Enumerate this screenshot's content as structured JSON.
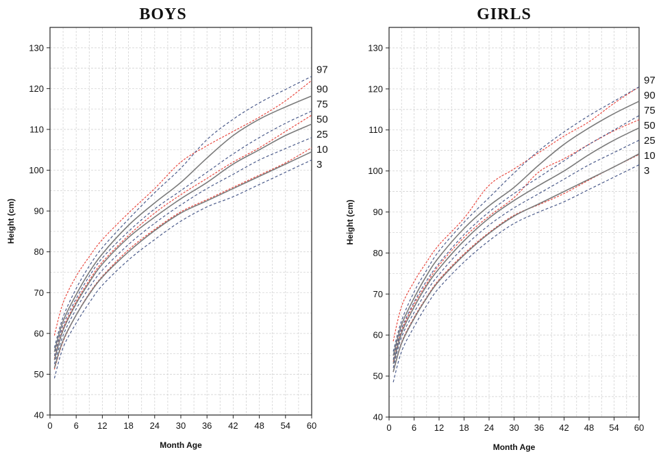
{
  "chart_data": [
    {
      "type": "line",
      "title": "BOYS",
      "xlabel": "Month Age",
      "ylabel": "Height (cm)",
      "xlim": [
        0,
        60
      ],
      "ylim": [
        40,
        135
      ],
      "x_ticks": [
        0,
        6,
        12,
        18,
        24,
        30,
        36,
        42,
        48,
        54,
        60
      ],
      "y_ticks": [
        40,
        50,
        60,
        70,
        80,
        90,
        100,
        110,
        120,
        130
      ],
      "grid": true,
      "line_styles": {
        "dashed": {
          "color": "#4a5a8a",
          "dasharray": "4 3"
        },
        "solid": {
          "color": "#7a7a7a",
          "dasharray": ""
        },
        "red_dotted": {
          "color": "#e8483f",
          "dasharray": "3 2"
        }
      },
      "x": [
        1,
        3,
        6,
        9,
        12,
        18,
        24,
        30,
        36,
        42,
        48,
        54,
        60
      ],
      "series": [
        {
          "name": "97",
          "style": "dashed",
          "values": [
            56.5,
            64.0,
            71.0,
            76.5,
            81.0,
            88.0,
            94.5,
            100.5,
            107.5,
            112.5,
            116.5,
            119.8,
            123.0
          ]
        },
        {
          "name": "90",
          "style": "solid",
          "values": [
            55.5,
            63.0,
            69.5,
            75.0,
            79.5,
            86.5,
            92.0,
            97.0,
            103.0,
            108.5,
            112.5,
            115.5,
            118.2
          ]
        },
        {
          "name": "75",
          "style": "dashed",
          "values": [
            54.5,
            62.0,
            68.5,
            74.0,
            78.5,
            85.0,
            90.5,
            95.0,
            99.5,
            104.0,
            108.0,
            111.5,
            114.5
          ]
        },
        {
          "name": "50",
          "style": "solid",
          "values": [
            53.5,
            60.8,
            67.3,
            72.5,
            77.0,
            83.5,
            88.5,
            93.0,
            97.0,
            101.5,
            105.0,
            108.5,
            111.3
          ]
        },
        {
          "name": "25",
          "style": "dashed",
          "values": [
            52.5,
            59.5,
            66.0,
            71.2,
            75.5,
            81.8,
            87.0,
            91.5,
            95.5,
            99.0,
            102.5,
            105.3,
            108.0
          ]
        },
        {
          "name": "10",
          "style": "solid",
          "values": [
            51.5,
            58.3,
            64.5,
            69.6,
            73.8,
            80.0,
            85.2,
            89.5,
            92.5,
            95.5,
            98.5,
            101.5,
            104.5
          ]
        },
        {
          "name": "3",
          "style": "dashed",
          "values": [
            49.0,
            56.5,
            62.5,
            67.5,
            71.8,
            78.0,
            83.0,
            87.5,
            91.0,
            93.5,
            96.5,
            99.5,
            102.5
          ]
        },
        {
          "name": "",
          "style": "red_dotted",
          "values": [
            59.5,
            67.5,
            74.0,
            78.8,
            83.0,
            89.5,
            95.5,
            102.0,
            106.0,
            109.5,
            113.0,
            117.0,
            122.0
          ]
        },
        {
          "name": "",
          "style": "red_dotted",
          "values": [
            53.8,
            61.2,
            67.8,
            73.0,
            77.5,
            84.0,
            89.5,
            94.0,
            98.0,
            102.0,
            105.5,
            109.5,
            113.5
          ]
        },
        {
          "name": "",
          "style": "red_dotted",
          "values": [
            51.2,
            58.0,
            64.5,
            69.8,
            74.0,
            80.5,
            85.5,
            89.8,
            92.8,
            95.8,
            98.8,
            101.8,
            105.5
          ]
        }
      ]
    },
    {
      "type": "line",
      "title": "GIRLS",
      "xlabel": "Month Age",
      "ylabel": "Height (cm)",
      "xlim": [
        0,
        60
      ],
      "ylim": [
        40,
        135
      ],
      "x_ticks": [
        0,
        6,
        12,
        18,
        24,
        30,
        36,
        42,
        48,
        54,
        60
      ],
      "y_ticks": [
        40,
        50,
        60,
        70,
        80,
        90,
        100,
        110,
        120,
        130
      ],
      "grid": true,
      "line_styles": {
        "dashed": {
          "color": "#4a5a8a",
          "dasharray": "4 3"
        },
        "solid": {
          "color": "#7a7a7a",
          "dasharray": ""
        },
        "red_dotted": {
          "color": "#e8483f",
          "dasharray": "3 2"
        }
      },
      "x": [
        1,
        3,
        6,
        9,
        12,
        18,
        24,
        30,
        36,
        42,
        48,
        54,
        60
      ],
      "series": [
        {
          "name": "97",
          "style": "dashed",
          "values": [
            56.0,
            63.5,
            70.5,
            75.8,
            80.5,
            87.5,
            93.5,
            99.5,
            105.0,
            109.5,
            113.5,
            117.0,
            120.5
          ]
        },
        {
          "name": "90",
          "style": "solid",
          "values": [
            55.0,
            62.5,
            69.0,
            74.5,
            79.0,
            86.0,
            91.5,
            96.0,
            101.5,
            106.5,
            110.5,
            114.0,
            117.0
          ]
        },
        {
          "name": "75",
          "style": "dashed",
          "values": [
            54.0,
            61.5,
            68.0,
            73.2,
            77.5,
            84.5,
            90.0,
            94.5,
            98.5,
            102.5,
            106.5,
            110.0,
            113.5
          ]
        },
        {
          "name": "50",
          "style": "solid",
          "values": [
            53.0,
            60.5,
            66.8,
            72.0,
            76.2,
            83.0,
            88.5,
            92.8,
            96.5,
            100.0,
            104.0,
            107.5,
            110.5
          ]
        },
        {
          "name": "25",
          "style": "dashed",
          "values": [
            52.0,
            59.5,
            65.5,
            70.6,
            74.8,
            81.5,
            86.8,
            91.0,
            94.5,
            98.0,
            101.5,
            104.5,
            107.5
          ]
        },
        {
          "name": "10",
          "style": "solid",
          "values": [
            51.0,
            58.0,
            64.0,
            69.0,
            73.2,
            79.5,
            84.8,
            89.0,
            92.0,
            95.0,
            98.0,
            101.0,
            104.2
          ]
        },
        {
          "name": "3",
          "style": "dashed",
          "values": [
            48.5,
            56.0,
            62.0,
            67.2,
            71.5,
            77.8,
            83.0,
            87.2,
            90.0,
            92.5,
            95.5,
            98.5,
            101.5
          ]
        },
        {
          "name": "",
          "style": "red_dotted",
          "values": [
            58.5,
            67.0,
            73.0,
            77.8,
            82.0,
            88.5,
            96.5,
            100.5,
            104.5,
            108.5,
            112.0,
            116.5,
            120.5
          ]
        },
        {
          "name": "",
          "style": "red_dotted",
          "values": [
            53.5,
            61.0,
            67.5,
            72.5,
            77.0,
            83.8,
            89.0,
            93.5,
            99.8,
            103.0,
            106.5,
            109.8,
            112.5
          ]
        },
        {
          "name": "",
          "style": "red_dotted",
          "values": [
            51.0,
            58.2,
            64.3,
            69.2,
            73.5,
            79.8,
            85.0,
            89.2,
            91.8,
            94.5,
            97.8,
            101.0,
            104.0
          ]
        }
      ]
    }
  ]
}
